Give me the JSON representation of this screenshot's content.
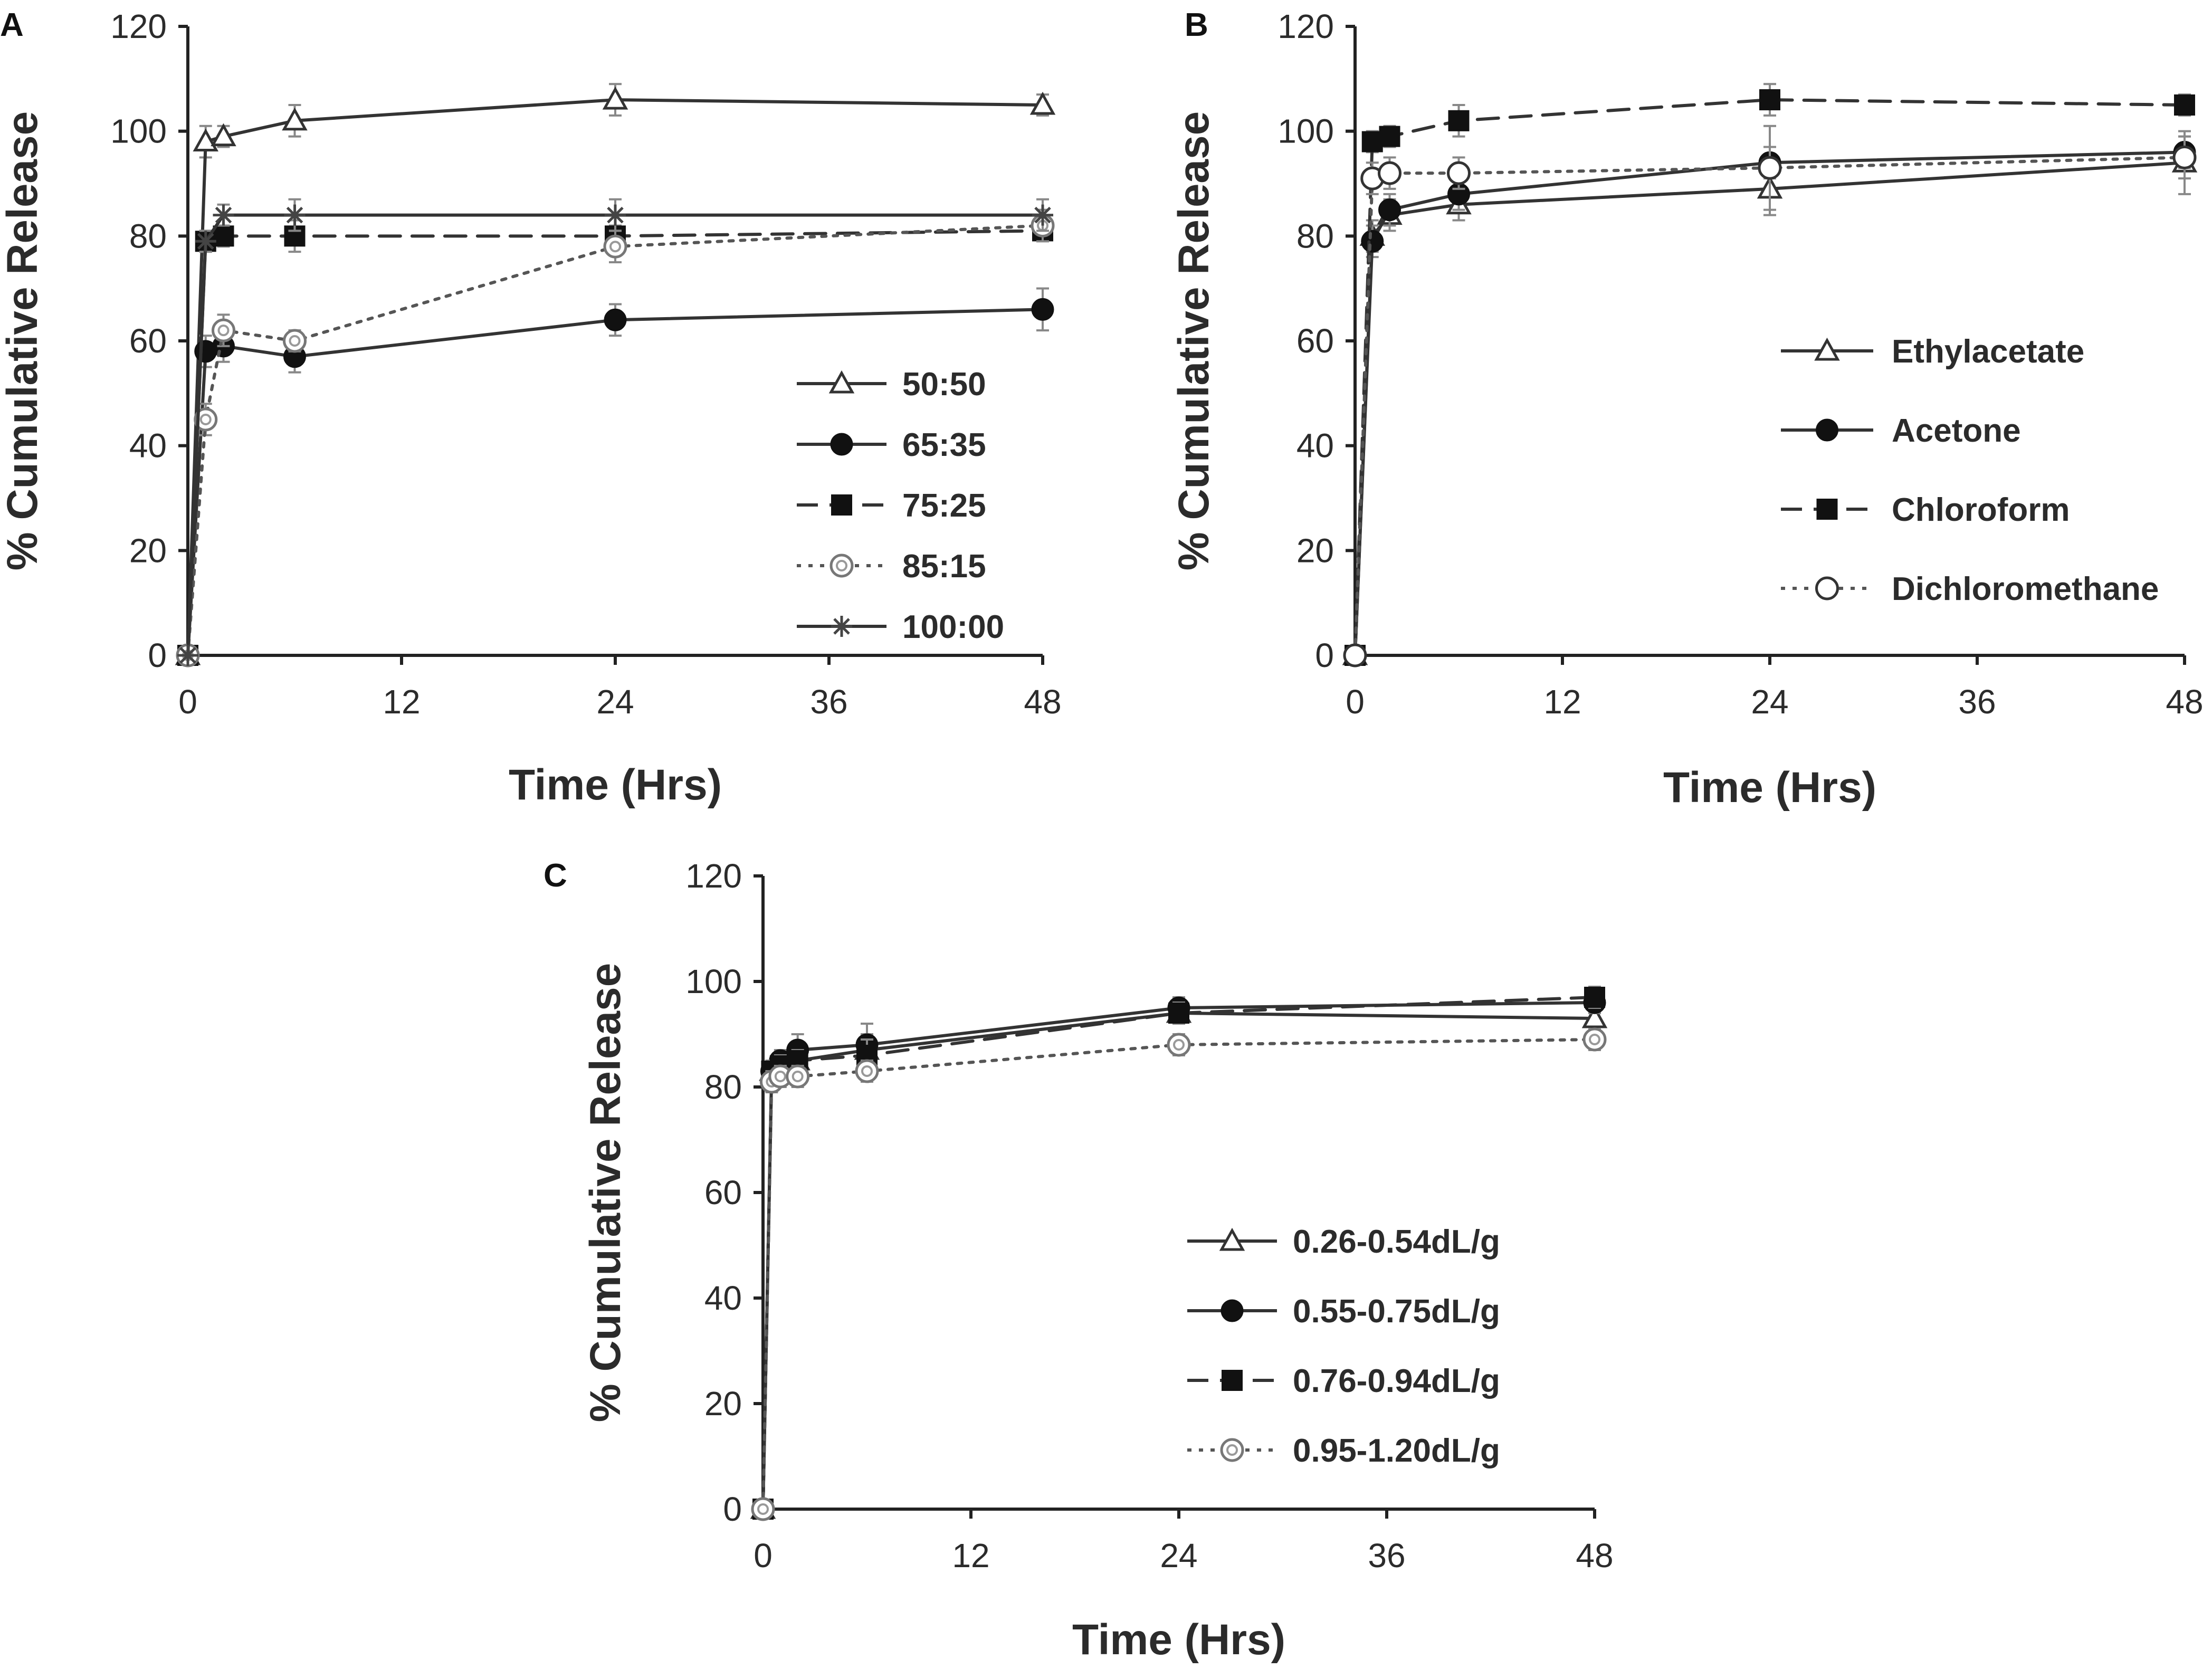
{
  "figure": {
    "background": "#ffffff"
  },
  "chart_data": [
    {
      "panel": "A",
      "type": "line",
      "title": "",
      "xlabel": "Time (Hrs)",
      "ylabel": "% Cumulative Release",
      "xlim": [
        0,
        48
      ],
      "ylim": [
        0,
        120
      ],
      "xticks": [
        "0",
        "12",
        "24",
        "36",
        "48"
      ],
      "yticks": [
        "0",
        "20",
        "40",
        "60",
        "80",
        "100",
        "120"
      ],
      "grid": false,
      "legend_position": "right-middle",
      "x": [
        0,
        1,
        2,
        6,
        24,
        48
      ],
      "series": [
        {
          "name": "50:50",
          "marker": "triangle-open",
          "dash": "solid",
          "color": "#333333",
          "values": [
            0,
            98,
            99,
            102,
            106,
            105
          ],
          "errors": [
            0,
            3,
            2,
            3,
            3,
            2
          ]
        },
        {
          "name": "65:35",
          "marker": "circle-filled",
          "dash": "solid",
          "color": "#333333",
          "values": [
            0,
            58,
            59,
            57,
            64,
            66
          ],
          "errors": [
            0,
            3,
            3,
            3,
            3,
            4
          ]
        },
        {
          "name": "75:25",
          "marker": "square-filled",
          "dash": "dashed",
          "color": "#333333",
          "values": [
            0,
            79,
            80,
            80,
            80,
            81
          ],
          "errors": [
            0,
            2,
            2,
            3,
            2,
            2
          ]
        },
        {
          "name": "85:15",
          "marker": "circle-open-gray",
          "dash": "dotted",
          "color": "#555555",
          "values": [
            0,
            45,
            62,
            60,
            78,
            82
          ],
          "errors": [
            0,
            3,
            3,
            2,
            3,
            3
          ]
        },
        {
          "name": "100:00",
          "marker": "star",
          "dash": "solid",
          "color": "#333333",
          "values": [
            0,
            79,
            84,
            84,
            84,
            84
          ],
          "errors": [
            0,
            2,
            2,
            3,
            3,
            3
          ]
        }
      ]
    },
    {
      "panel": "B",
      "type": "line",
      "title": "",
      "xlabel": "Time (Hrs)",
      "ylabel": "% Cumulative Release",
      "xlim": [
        0,
        48
      ],
      "ylim": [
        0,
        120
      ],
      "xticks": [
        "0",
        "12",
        "24",
        "36",
        "48"
      ],
      "yticks": [
        "0",
        "20",
        "40",
        "60",
        "80",
        "100",
        "120"
      ],
      "grid": false,
      "legend_position": "right-middle",
      "x": [
        0,
        1,
        2,
        6,
        24,
        48
      ],
      "series": [
        {
          "name": "Ethylacetate",
          "marker": "triangle-open",
          "dash": "solid",
          "color": "#333333",
          "values": [
            0,
            80,
            84,
            86,
            89,
            94
          ],
          "errors": [
            0,
            3,
            3,
            3,
            5,
            6
          ]
        },
        {
          "name": "Acetone",
          "marker": "circle-filled",
          "dash": "solid",
          "color": "#333333",
          "values": [
            0,
            79,
            85,
            88,
            94,
            96
          ],
          "errors": [
            0,
            3,
            3,
            3,
            3,
            3
          ]
        },
        {
          "name": "Chloroform",
          "marker": "square-filled",
          "dash": "dashed",
          "color": "#333333",
          "values": [
            0,
            98,
            99,
            102,
            106,
            105
          ],
          "errors": [
            0,
            2,
            2,
            3,
            3,
            2
          ]
        },
        {
          "name": "Dichloromethane",
          "marker": "circle-open",
          "dash": "dotted",
          "color": "#555555",
          "values": [
            0,
            91,
            92,
            92,
            93,
            95
          ],
          "errors": [
            0,
            3,
            3,
            3,
            8,
            4
          ]
        }
      ]
    },
    {
      "panel": "C",
      "type": "line",
      "title": "",
      "xlabel": "Time (Hrs)",
      "ylabel": "% Cumulative Release",
      "xlim": [
        0,
        48
      ],
      "ylim": [
        0,
        120
      ],
      "xticks": [
        "0",
        "12",
        "24",
        "36",
        "48"
      ],
      "yticks": [
        "0",
        "20",
        "40",
        "60",
        "80",
        "100",
        "120"
      ],
      "grid": false,
      "legend_position": "right-bottom",
      "x": [
        0,
        0.5,
        1,
        2,
        6,
        24,
        48
      ],
      "series": [
        {
          "name": "0.26-0.54dL/g",
          "marker": "triangle-open",
          "dash": "solid",
          "color": "#333333",
          "values": [
            0,
            83,
            84,
            85,
            87,
            94,
            93
          ],
          "errors": [
            0,
            2,
            2,
            3,
            3,
            2,
            2
          ]
        },
        {
          "name": "0.55-0.75dL/g",
          "marker": "circle-filled",
          "dash": "solid",
          "color": "#333333",
          "values": [
            0,
            83,
            85,
            87,
            88,
            95,
            96
          ],
          "errors": [
            0,
            2,
            2,
            3,
            4,
            2,
            2
          ]
        },
        {
          "name": "0.76-0.94dL/g",
          "marker": "square-filled",
          "dash": "dashed",
          "color": "#333333",
          "values": [
            0,
            83,
            84,
            85,
            86,
            94,
            97
          ],
          "errors": [
            0,
            2,
            2,
            2,
            3,
            2,
            2
          ]
        },
        {
          "name": "0.95-1.20dL/g",
          "marker": "circle-open-gray",
          "dash": "dotted",
          "color": "#555555",
          "values": [
            0,
            81,
            82,
            82,
            83,
            88,
            89
          ],
          "errors": [
            0,
            2,
            2,
            2,
            2,
            2,
            2
          ]
        }
      ]
    }
  ]
}
